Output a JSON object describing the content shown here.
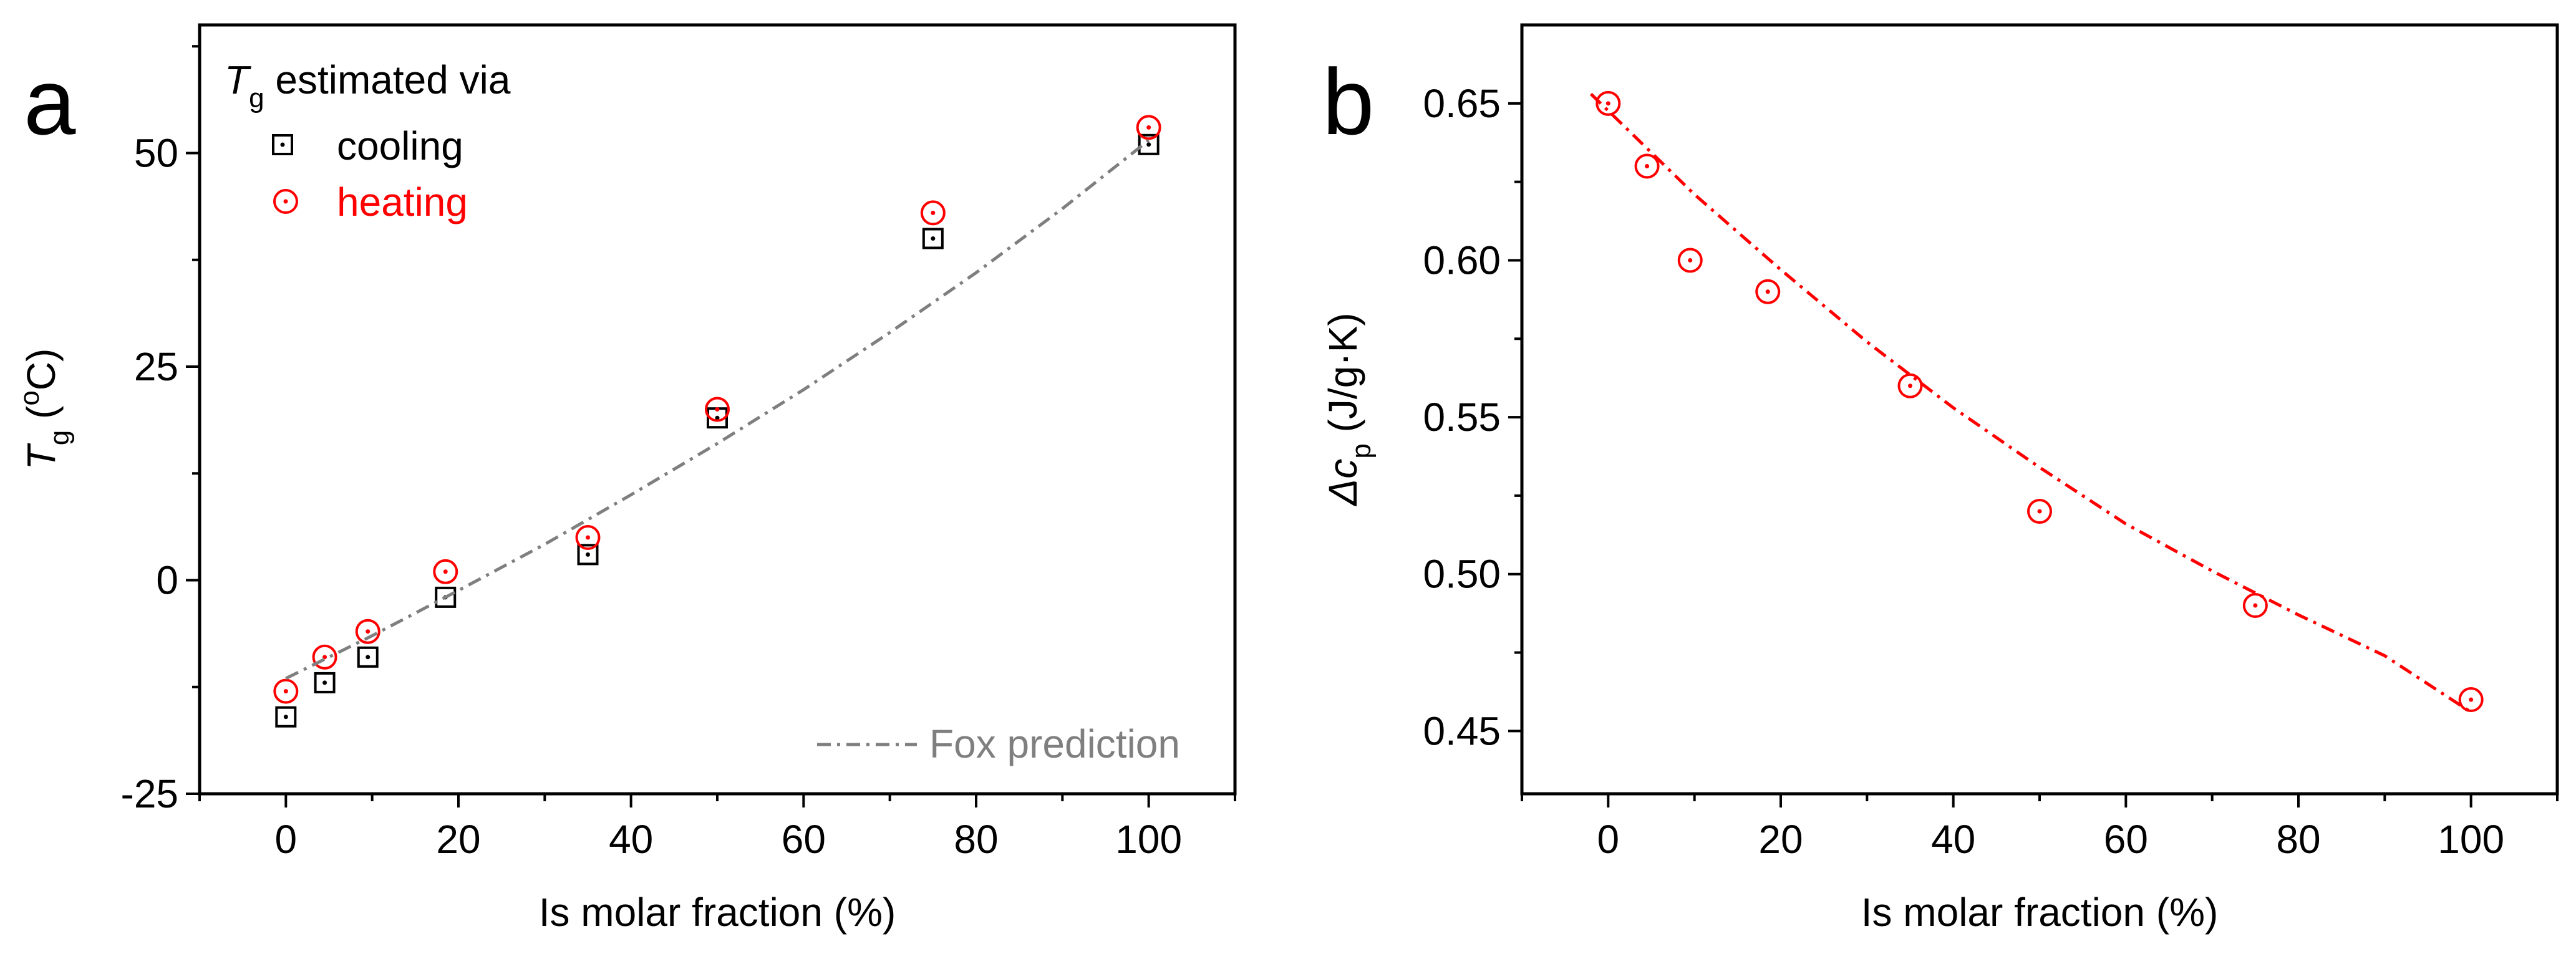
{
  "chart_data": [
    {
      "type": "scatter",
      "panel_label": "a",
      "xlabel": "Is molar fraction (%)",
      "ylabel_main": "T",
      "ylabel_sub": "g",
      "ylabel_rest_open": " (",
      "ylabel_sup": "o",
      "ylabel_rest_close": "C)",
      "xlim": [
        -10,
        110
      ],
      "ylim": [
        -25,
        65
      ],
      "xticks": [
        0,
        20,
        40,
        60,
        80,
        100
      ],
      "yticks": [
        -25,
        0,
        25,
        50
      ],
      "legend": {
        "position": "top-left",
        "title_main": "T",
        "title_sub": "g",
        "title_rest": " estimated via",
        "entries": [
          "cooling",
          "heating"
        ]
      },
      "fox_label": "Fox prediction",
      "series": [
        {
          "name": "cooling",
          "marker": "square-dot",
          "color": "#000000",
          "x": [
            0,
            4.5,
            9.5,
            18.5,
            35,
            50,
            75,
            100
          ],
          "y": [
            -16,
            -12,
            -9,
            -2,
            3,
            19,
            40,
            51
          ]
        },
        {
          "name": "heating",
          "marker": "circle-dot",
          "color": "#ff0000",
          "x": [
            0,
            4.5,
            9.5,
            18.5,
            35,
            50,
            75,
            100
          ],
          "y": [
            -13,
            -9,
            -6,
            1,
            5,
            20,
            43,
            53
          ]
        },
        {
          "name": "Fox prediction",
          "style": "dash-dot",
          "color": "#7f7f7f",
          "x": [
            0,
            10,
            20,
            30,
            40,
            50,
            60,
            70,
            80,
            90,
            100
          ],
          "y": [
            -11.5,
            -6.5,
            -1.2,
            4.2,
            10,
            16,
            22.3,
            29,
            36,
            43.5,
            51.5
          ]
        }
      ]
    },
    {
      "type": "scatter",
      "panel_label": "b",
      "xlabel": "Is molar fraction (%)",
      "ylabel_main": "Δc",
      "ylabel_sub": "p",
      "ylabel_rest": " (J/g·K)",
      "xlim": [
        -10,
        110
      ],
      "ylim": [
        0.43,
        0.675
      ],
      "xticks": [
        0,
        20,
        40,
        60,
        80,
        100
      ],
      "yticks": [
        "0.45",
        "0.50",
        "0.55",
        "0.60",
        "0.65"
      ],
      "series": [
        {
          "name": "Δcp",
          "marker": "circle-dot",
          "color": "#ff0000",
          "x": [
            0,
            4.5,
            9.5,
            18.5,
            35,
            50,
            75,
            100
          ],
          "y": [
            0.65,
            0.63,
            0.6,
            0.59,
            0.56,
            0.52,
            0.49,
            0.46
          ]
        },
        {
          "name": "fit",
          "style": "dash-dot",
          "color": "#ff0000",
          "x": [
            -2,
            10,
            20,
            30,
            40,
            50,
            60,
            70,
            80,
            90,
            100
          ],
          "y": [
            0.653,
            0.621,
            0.597,
            0.574,
            0.553,
            0.534,
            0.516,
            0.501,
            0.487,
            0.474,
            0.456
          ]
        }
      ]
    }
  ]
}
